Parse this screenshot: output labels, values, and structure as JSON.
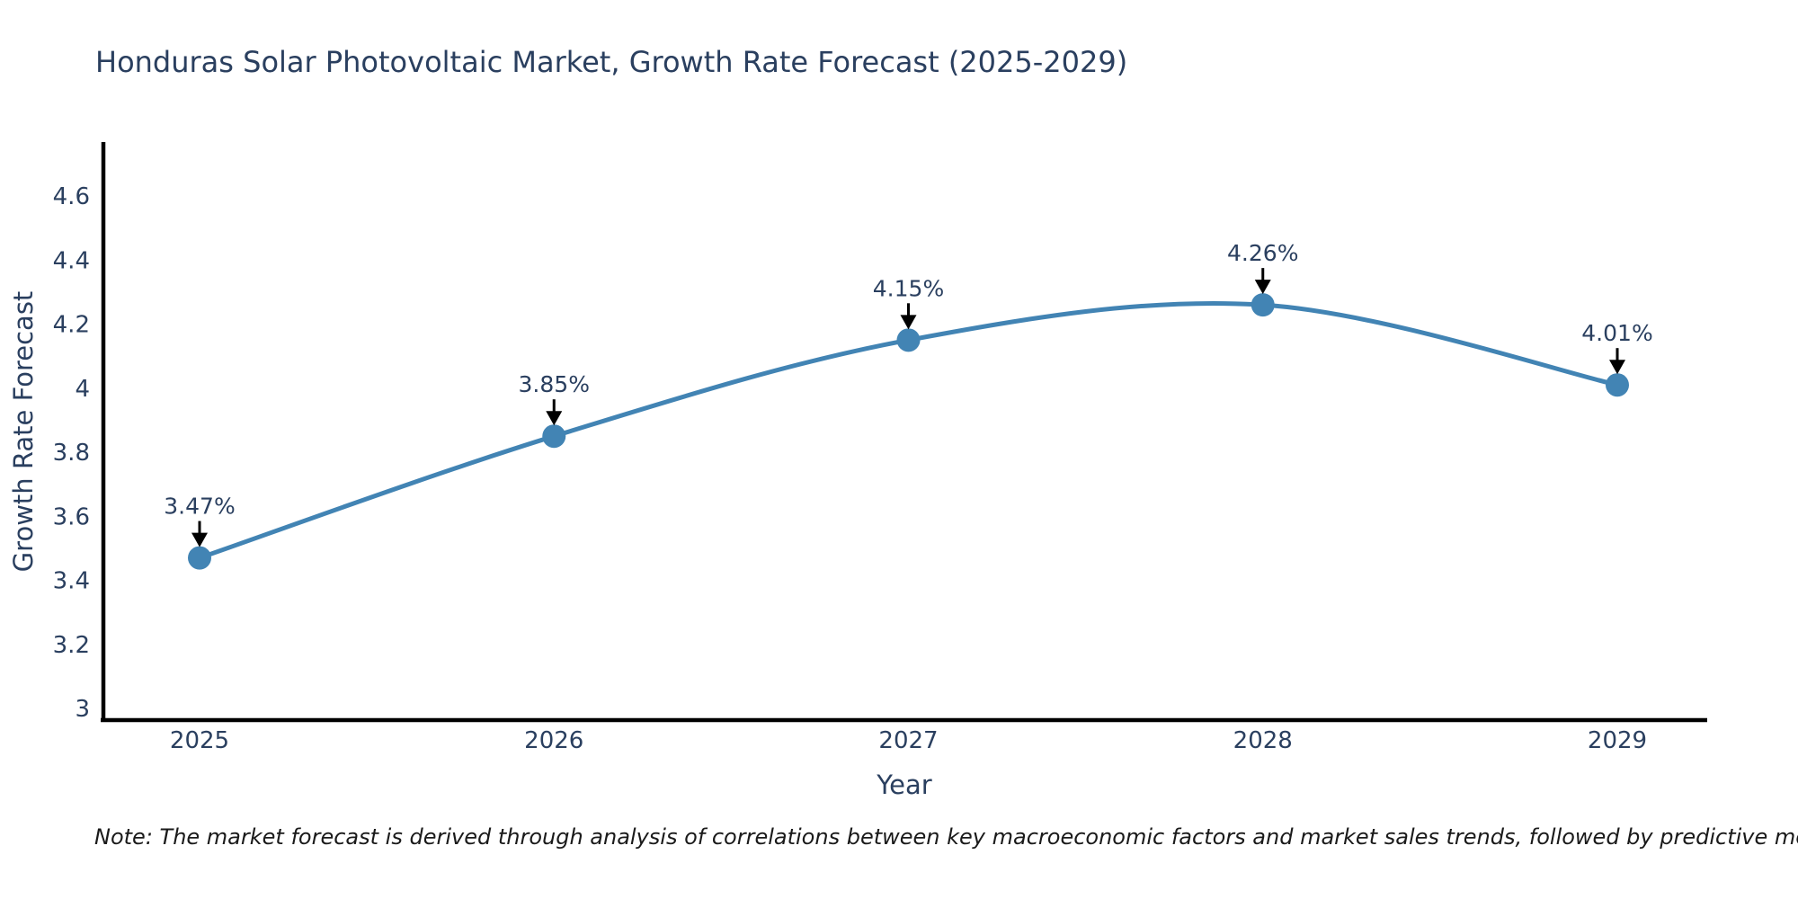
{
  "chart": {
    "title": "Honduras Solar Photovoltaic Market, Growth Rate Forecast (2025-2029)",
    "note": "Note: The market forecast is derived through analysis of correlations between key macroeconomic factors and market sales trends, followed by predictive modeling to project future sales"
  },
  "chart_data": {
    "type": "line",
    "line_shape": "spline",
    "title": "Honduras Solar Photovoltaic Market, Growth Rate Forecast (2025-2029)",
    "categories": [
      "2025",
      "2026",
      "2027",
      "2028",
      "2029"
    ],
    "values": [
      3.47,
      3.85,
      4.15,
      4.26,
      4.01
    ],
    "point_labels": [
      "3.47%",
      "3.85%",
      "4.15%",
      "4.26%",
      "4.01%"
    ],
    "xlabel": "Year",
    "ylabel": "Growth Rate Forecast",
    "ytick_labels": [
      "3",
      "3.2",
      "3.4",
      "3.6",
      "3.8",
      "4",
      "4.2",
      "4.4",
      "4.6"
    ],
    "ylim": [
      2.96,
      4.8
    ],
    "grid": false,
    "legend_position": "none",
    "annotations_have_arrows": true,
    "colors": {
      "line": "#4284b4",
      "marker": "#4284b4",
      "arrow": "#000000",
      "axis_line": "#000000",
      "text": "#2a3f5f",
      "note_text": "#1a1a1a",
      "background": "#ffffff"
    }
  }
}
